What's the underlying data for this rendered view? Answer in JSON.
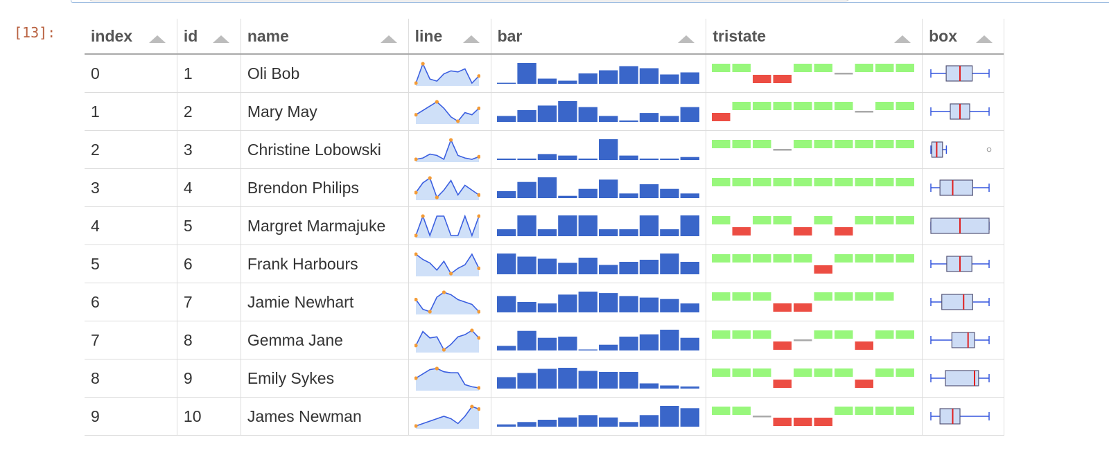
{
  "prompt": "[13]:",
  "columns": [
    {
      "key": "index",
      "label": "index",
      "width": 134
    },
    {
      "key": "id",
      "label": "id",
      "width": 92
    },
    {
      "key": "name",
      "label": "name",
      "width": 242
    },
    {
      "key": "line",
      "label": "line",
      "width": 119
    },
    {
      "key": "bar",
      "label": "bar",
      "width": 311
    },
    {
      "key": "tristate",
      "label": "tristate",
      "width": 312
    },
    {
      "key": "box",
      "label": "box",
      "width": 117
    }
  ],
  "colors": {
    "line_stroke": "#3b5fe0",
    "line_fill": "#cfe0f8",
    "line_point": "#f39b36",
    "bar_fill": "#3a66c9",
    "tristate_positive": "#98f77c",
    "tristate_negative": "#ec4d43",
    "tristate_zero": "#a9a9a9",
    "box_fill": "#cddcf5",
    "box_stroke": "#3355dd",
    "box_median": "#e02020"
  },
  "rows": [
    {
      "index": "0",
      "id": "1",
      "name": "Oli Bob",
      "line": [
        1,
        20,
        5,
        3,
        10,
        13,
        12,
        15,
        1,
        8
      ],
      "bar": [
        1,
        20,
        5,
        3,
        10,
        13,
        17,
        15,
        9,
        11
      ],
      "tristate": [
        1,
        1,
        -1,
        -1,
        1,
        1,
        0,
        1,
        1,
        1
      ],
      "box": [
        1,
        20,
        5,
        3,
        10,
        13,
        17,
        15,
        9,
        11
      ]
    },
    {
      "index": "1",
      "id": "2",
      "name": "Mary May",
      "line": [
        10,
        12,
        14,
        16,
        13,
        9,
        7,
        11,
        10,
        13
      ],
      "bar": [
        4,
        8,
        11,
        14,
        10,
        4,
        1,
        6,
        4,
        10
      ],
      "tristate": [
        -1,
        1,
        1,
        1,
        1,
        1,
        1,
        0,
        1,
        1
      ],
      "box": [
        10,
        12,
        14,
        16,
        13,
        9,
        7,
        11,
        10,
        13
      ]
    },
    {
      "index": "2",
      "id": "3",
      "name": "Christine Lobowski",
      "line": [
        1,
        2,
        5,
        4,
        1,
        16,
        4,
        2,
        1,
        3
      ],
      "bar": [
        1,
        1,
        4,
        3,
        1,
        14,
        3,
        1,
        1,
        2
      ],
      "tristate": [
        1,
        1,
        1,
        0,
        1,
        1,
        1,
        1,
        1,
        1
      ],
      "box": [
        1,
        2,
        5,
        4,
        1,
        16,
        4,
        2,
        1,
        3
      ]
    },
    {
      "index": "3",
      "id": "4",
      "name": "Brendon Philips",
      "line": [
        3,
        7,
        9,
        1,
        4,
        8,
        2,
        6,
        4,
        2
      ],
      "bar": [
        3,
        7,
        9,
        1,
        4,
        8,
        2,
        6,
        4,
        2
      ],
      "tristate": [
        1,
        1,
        1,
        1,
        1,
        1,
        1,
        1,
        1,
        1
      ],
      "box": [
        3,
        7,
        9,
        1,
        4,
        8,
        2,
        6,
        4,
        2
      ]
    },
    {
      "index": "4",
      "id": "5",
      "name": "Margret Marmajuke",
      "line": [
        1,
        3,
        1,
        3,
        3,
        1,
        1,
        3,
        1,
        3
      ],
      "bar": [
        1,
        3,
        1,
        3,
        3,
        1,
        1,
        3,
        1,
        3
      ],
      "tristate": [
        1,
        -1,
        1,
        1,
        -1,
        1,
        -1,
        1,
        1,
        1
      ],
      "box": [
        1,
        3,
        1,
        3,
        3,
        1,
        1,
        3,
        1,
        3
      ]
    },
    {
      "index": "5",
      "id": "6",
      "name": "Frank Harbours",
      "line": [
        20,
        17,
        15,
        11,
        16,
        9,
        12,
        14,
        20,
        12
      ],
      "bar": [
        20,
        17,
        15,
        11,
        16,
        9,
        12,
        14,
        20,
        12
      ],
      "tristate": [
        1,
        1,
        1,
        1,
        1,
        -1,
        1,
        1,
        1,
        1
      ],
      "box": [
        20,
        17,
        15,
        11,
        16,
        9,
        12,
        14,
        20,
        12
      ]
    },
    {
      "index": "6",
      "id": "7",
      "name": "Jamie Newhart",
      "line": [
        11,
        7,
        6,
        12,
        14,
        13,
        11,
        10,
        9,
        6
      ],
      "bar": [
        11,
        7,
        6,
        12,
        14,
        13,
        11,
        10,
        9,
        6
      ],
      "tristate": [
        1,
        1,
        1,
        -1,
        -1,
        1,
        1,
        1,
        1
      ],
      "box": [
        11,
        7,
        6,
        12,
        14,
        13,
        11,
        10,
        9,
        6
      ]
    },
    {
      "index": "7",
      "id": "8",
      "name": "Gemma Jane",
      "line": [
        4,
        17,
        11,
        12,
        0,
        5,
        12,
        14,
        18,
        11
      ],
      "bar": [
        4,
        17,
        11,
        12,
        0,
        5,
        12,
        14,
        18,
        11
      ],
      "tristate": [
        1,
        1,
        1,
        -1,
        0,
        1,
        1,
        -1,
        1,
        1
      ],
      "box": [
        4,
        17,
        11,
        12,
        0,
        5,
        12,
        14,
        18,
        11
      ]
    },
    {
      "index": "8",
      "id": "9",
      "name": "Emily Sykes",
      "line": [
        11,
        15,
        19,
        20,
        17,
        16,
        16,
        5,
        3,
        2
      ],
      "bar": [
        11,
        15,
        19,
        20,
        17,
        16,
        16,
        5,
        3,
        2
      ],
      "tristate": [
        1,
        1,
        1,
        -1,
        1,
        1,
        1,
        -1,
        1,
        1
      ],
      "box": [
        11,
        15,
        19,
        20,
        17,
        16,
        16,
        5,
        3,
        2
      ]
    },
    {
      "index": "9",
      "id": "10",
      "name": "James Newman",
      "line": [
        1,
        2,
        3,
        4,
        5,
        4,
        2,
        5,
        9,
        8
      ],
      "bar": [
        1,
        2,
        3,
        4,
        5,
        4,
        2,
        5,
        9,
        8
      ],
      "tristate": [
        1,
        1,
        0,
        -1,
        -1,
        -1,
        1,
        1,
        1,
        1
      ],
      "box": [
        1,
        2,
        3,
        4,
        5,
        4,
        2,
        5,
        9,
        8
      ]
    }
  ]
}
